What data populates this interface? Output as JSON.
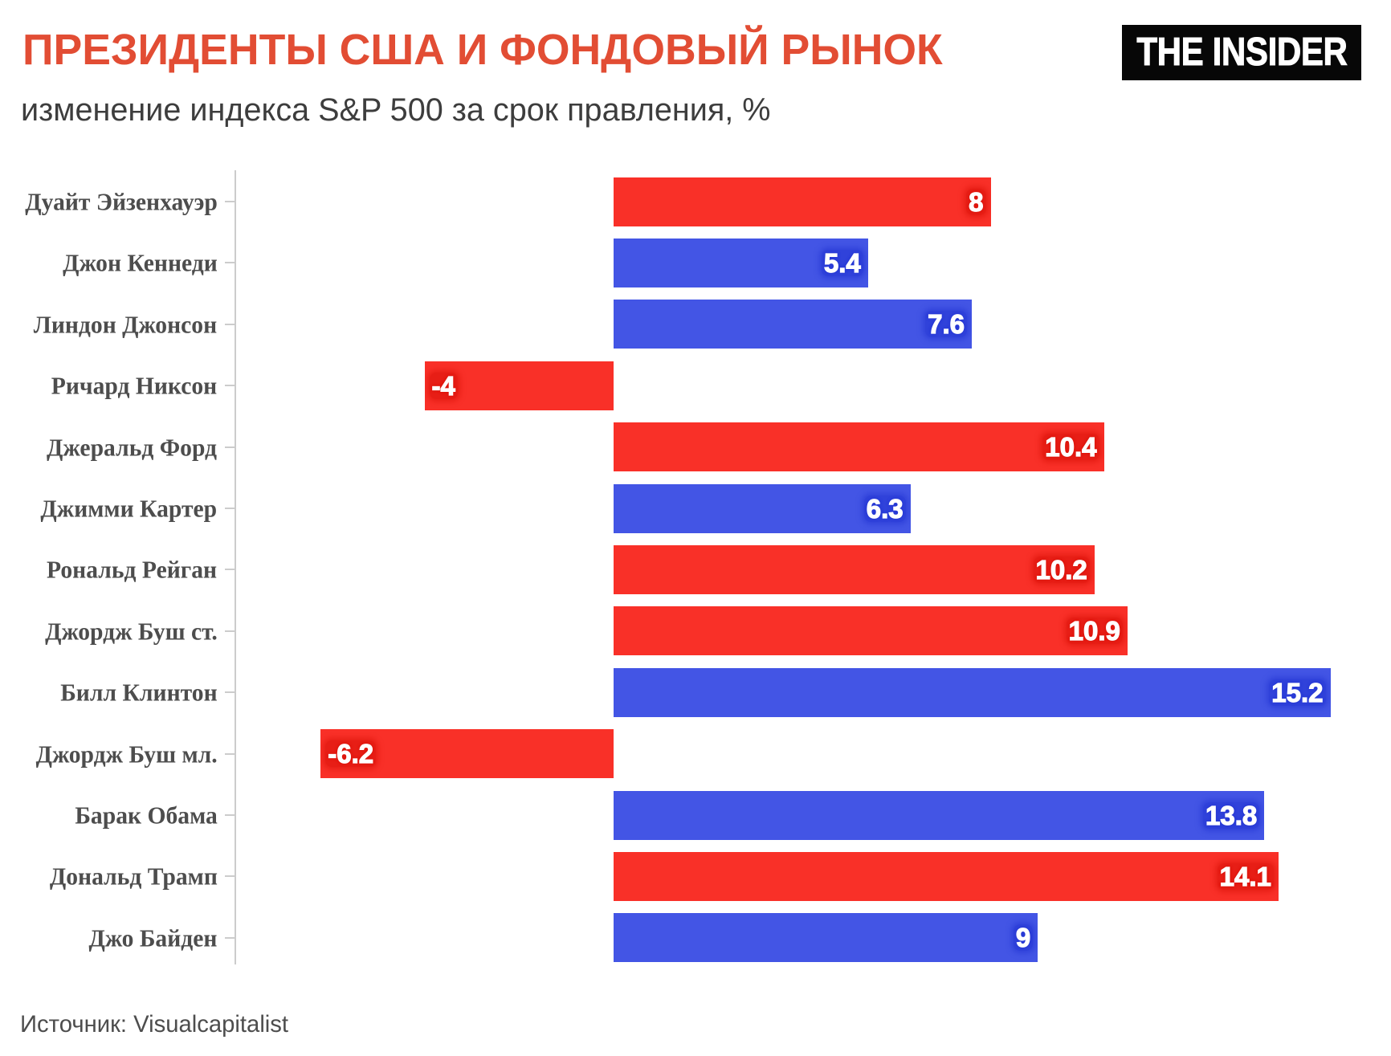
{
  "title": "ПРЕЗИДЕНТЫ США И ФОНДОВЫЙ РЫНОК",
  "subtitle": "изменение индекса S&P 500 за срок правления, %",
  "logo": "THE INSIDER",
  "source": "Источник: Visualcapitalist",
  "colors": {
    "title": "#e24d34",
    "subtitle": "#3d3d3d",
    "category_label": "#4d4d4d",
    "axis": "#cccccc",
    "source": "#4d4d4d",
    "logo_bg": "#070707",
    "logo_text": "#ffffff",
    "republican_bar": "#f93028",
    "republican_label_shade": "#d81007",
    "democrat_bar": "#4355e5",
    "democrat_label_shade": "#2133d2",
    "value_text": "#ffffff"
  },
  "chart_data": {
    "type": "bar",
    "orientation": "horizontal",
    "title": "ПРЕЗИДЕНТЫ США И ФОНДОВЫЙ РЫНОК",
    "subtitle": "изменение индекса S&P 500 за срок правления, %",
    "categories": [
      "Дуайт Эйзенхауэр",
      "Джон Кеннеди",
      "Линдон Джонсон",
      "Ричард Никсон",
      "Джеральд Форд",
      "Джимми Картер",
      "Рональд Рейган",
      "Джордж Буш ст.",
      "Билл Клинтон",
      "Джордж Буш мл.",
      "Барак Обама",
      "Дональд Трамп",
      "Джо Байден"
    ],
    "values": [
      8,
      5.4,
      7.6,
      -4,
      10.4,
      6.3,
      10.2,
      10.9,
      15.2,
      -6.2,
      13.8,
      14.1,
      9
    ],
    "value_labels": [
      "8",
      "5.4",
      "7.6",
      "-4",
      "10.4",
      "6.3",
      "10.2",
      "10.9",
      "15.2",
      "-6.2",
      "13.8",
      "14.1",
      "9"
    ],
    "party": [
      "R",
      "D",
      "D",
      "R",
      "R",
      "D",
      "R",
      "R",
      "D",
      "R",
      "D",
      "R",
      "D"
    ],
    "xlabel": "",
    "ylabel": "",
    "xlim": [
      -8,
      16.5
    ],
    "grid": false,
    "legend": false,
    "source": "Источник: Visualcapitalist"
  }
}
